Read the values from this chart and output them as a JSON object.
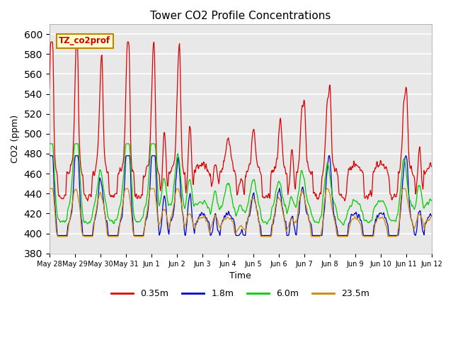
{
  "title": "Tower CO2 Profile Concentrations",
  "xlabel": "Time",
  "ylabel": "CO2 (ppm)",
  "ylim": [
    380,
    610
  ],
  "yticks": [
    380,
    400,
    420,
    440,
    460,
    480,
    500,
    520,
    540,
    560,
    580,
    600
  ],
  "x_tick_positions": [
    0,
    1,
    2,
    3,
    4,
    5,
    6,
    7,
    8,
    9,
    10,
    11,
    12,
    13,
    14,
    15
  ],
  "x_tick_labels": [
    "May 28",
    "May 29",
    "May 30",
    "May 31",
    "Jun 1",
    "Jun 2",
    "Jun 3",
    "Jun 4",
    "Jun 5",
    "Jun 6",
    "Jun 7",
    "Jun 8",
    "Jun 9",
    "Jun 10",
    "Jun 11",
    "Jun 12"
  ],
  "label_box_text": "TZ_co2prof",
  "label_box_facecolor": "#ffffcc",
  "label_box_edgecolor": "#bb8800",
  "plot_bg_color": "#e8e8e8",
  "grid_color": "#ffffff",
  "colors": {
    "0.35m": "#dd0000",
    "1.8m": "#0000cc",
    "6.0m": "#00cc00",
    "23.5m": "#cc8800"
  }
}
